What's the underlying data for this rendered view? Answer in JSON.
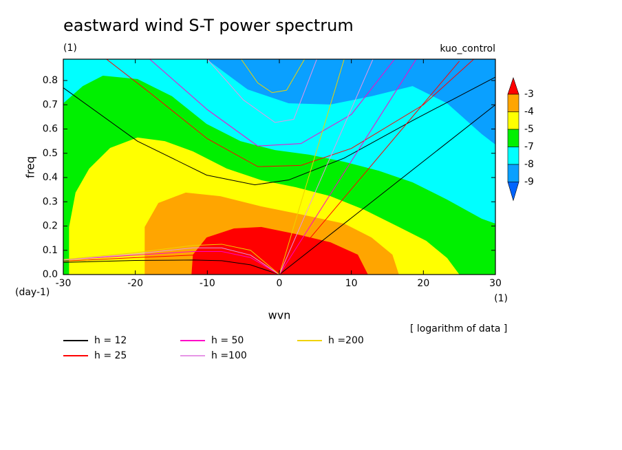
{
  "chart_data": {
    "type": "contour",
    "title": "eastward wind S-T power spectrum",
    "subtitle": "(1)",
    "experiment": "kuo_control",
    "xlabel": "wvn",
    "ylabel": "freq",
    "ylabel_unit": "(day-1)",
    "xlabel_unit": "(1)",
    "note": "[ logarithm of data ]",
    "xlim": [
      -30,
      30
    ],
    "ylim": [
      0,
      0.888
    ],
    "xticks": [
      -30,
      -20,
      -10,
      0,
      10,
      20,
      30
    ],
    "yticks": [
      {
        "value": 0,
        "label": "0.0"
      },
      0.1,
      0.2,
      0.3,
      0.4,
      0.5,
      0.6,
      0.7,
      0.8
    ],
    "colorbar": {
      "levels": [
        -3,
        -4,
        -5,
        -7,
        -8,
        -9
      ],
      "colors": [
        "#ff0000",
        "#ffa500",
        "#ffff00",
        "#00f000",
        "#00ffff",
        "#0aa0ff",
        "#0064ff"
      ]
    },
    "fills": [
      {
        "color": "#0aa0ff",
        "x": [
          -30,
          30,
          30,
          -30
        ],
        "y": [
          0,
          0,
          0.888,
          0.888
        ]
      },
      {
        "color": "#00ffff",
        "x": [
          -30,
          30,
          30,
          28.1,
          23.3,
          18.5,
          12.8,
          7.1,
          1.3,
          -4.4,
          -10.1,
          -30
        ],
        "y": [
          0,
          0,
          0.536,
          0.579,
          0.706,
          0.777,
          0.735,
          0.701,
          0.706,
          0.763,
          0.888,
          0.888
        ]
      },
      {
        "color": "#00f000",
        "x": [
          -30,
          -27.3,
          -24.5,
          -19.7,
          -14.9,
          -10.1,
          -5.4,
          -0.6,
          4.2,
          9.0,
          13.8,
          18.5,
          23.3,
          28.1,
          30,
          30,
          -30
        ],
        "y": [
          0.706,
          0.777,
          0.82,
          0.806,
          0.735,
          0.621,
          0.55,
          0.513,
          0.494,
          0.465,
          0.428,
          0.38,
          0.309,
          0.23,
          0.21,
          0,
          0
        ]
      },
      {
        "color": "#ffff00",
        "x": [
          -29.2,
          -29.2,
          -28.3,
          -26.4,
          -23.5,
          -19.7,
          -15.9,
          -12.0,
          -7.3,
          -2.5,
          2.3,
          7.1,
          11.8,
          16.6,
          20.4,
          23.3,
          25.0
        ],
        "y": [
          0,
          0.196,
          0.338,
          0.437,
          0.522,
          0.565,
          0.55,
          0.508,
          0.437,
          0.389,
          0.36,
          0.323,
          0.267,
          0.196,
          0.139,
          0.068,
          0
        ]
      },
      {
        "color": "#ffa500",
        "x": [
          -18.7,
          -18.7,
          -16.8,
          -13.0,
          -8.2,
          -2.5,
          3.2,
          9.0,
          12.8,
          15.7,
          16.6
        ],
        "y": [
          0,
          0.196,
          0.295,
          0.338,
          0.323,
          0.281,
          0.247,
          0.21,
          0.153,
          0.082,
          0
        ]
      },
      {
        "color": "#ff0000",
        "x": [
          -12.2,
          -12.0,
          -10.1,
          -6.3,
          -2.5,
          2.3,
          7.1,
          10.9,
          12.3
        ],
        "y": [
          0,
          0.082,
          0.153,
          0.19,
          0.196,
          0.167,
          0.133,
          0.082,
          0
        ]
      }
    ],
    "series": [
      {
        "name": "h = 12",
        "color": "#000000",
        "curves": [
          {
            "x": [
              0,
              30
            ],
            "y": [
              0,
              0.7
            ]
          },
          {
            "x": [
              -30,
              -19.7,
              -10.1,
              -3.4,
              1.3,
              9,
              18.5,
              30
            ],
            "y": [
              0.77,
              0.55,
              0.41,
              0.37,
              0.39,
              0.48,
              0.635,
              0.814
            ]
          },
          {
            "x": [
              -30,
              -20,
              -12,
              -8,
              -4,
              0
            ],
            "y": [
              0.05,
              0.058,
              0.06,
              0.057,
              0.04,
              0
            ]
          }
        ]
      },
      {
        "name": "h = 25",
        "color": "#ff0000",
        "curves": [
          {
            "x": [
              0,
              25
            ],
            "y": [
              0,
              0.88
            ]
          },
          {
            "x": [
              -24,
              -18,
              -10,
              -3,
              3,
              10,
              20,
              27
            ],
            "y": [
              0.888,
              0.75,
              0.56,
              0.445,
              0.45,
              0.52,
              0.7,
              0.888
            ]
          },
          {
            "x": [
              -30,
              -20,
              -12,
              -8,
              -4,
              0
            ],
            "y": [
              0.055,
              0.07,
              0.08,
              0.075,
              0.05,
              0
            ]
          }
        ]
      },
      {
        "name": "h = 50",
        "color": "#ff00c8",
        "curves": [
          {
            "x": [
              0,
              19
            ],
            "y": [
              0,
              0.888
            ]
          },
          {
            "x": [
              -18,
              -10,
              -3,
              3,
              10,
              16
            ],
            "y": [
              0.888,
              0.68,
              0.53,
              0.54,
              0.66,
              0.888
            ]
          },
          {
            "x": [
              -30,
              -20,
              -12,
              -8,
              -4,
              0
            ],
            "y": [
              0.06,
              0.08,
              0.095,
              0.095,
              0.07,
              0
            ]
          }
        ]
      },
      {
        "name": "h =100",
        "color": "#e695e6",
        "curves": [
          {
            "x": [
              0,
              13
            ],
            "y": [
              0,
              0.888
            ]
          },
          {
            "x": [
              -10,
              -5,
              -0.6,
              2,
              5.2
            ],
            "y": [
              0.888,
              0.72,
              0.627,
              0.64,
              0.888
            ]
          },
          {
            "x": [
              -30,
              -20,
              -12,
              -8,
              -4,
              0
            ],
            "y": [
              0.06,
              0.085,
              0.11,
              0.11,
              0.08,
              0
            ]
          }
        ]
      },
      {
        "name": "h =200",
        "color": "#f0d200",
        "curves": [
          {
            "x": [
              0,
              9
            ],
            "y": [
              0,
              0.888
            ]
          },
          {
            "x": [
              -5.3,
              -3,
              -1,
              1,
              3.5
            ],
            "y": [
              0.888,
              0.79,
              0.75,
              0.76,
              0.888
            ]
          },
          {
            "x": [
              -30,
              -20,
              -12,
              -8,
              -4,
              0
            ],
            "y": [
              0.062,
              0.09,
              0.12,
              0.125,
              0.1,
              0
            ]
          }
        ]
      }
    ]
  }
}
